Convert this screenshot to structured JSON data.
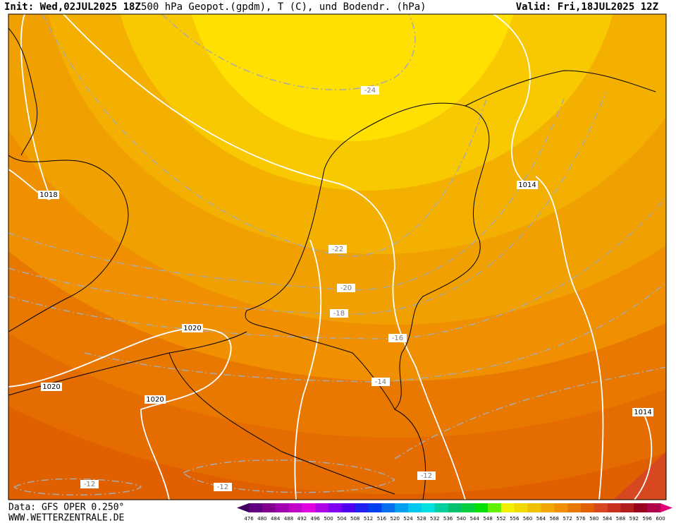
{
  "header": {
    "init": "Init: Wed,02JUL2025 18Z",
    "title": "500 hPa Geopot.(gpdm), T (C), und Bodendr. (hPa)",
    "valid": "Valid: Fri,18JUL2025 12Z"
  },
  "footer": {
    "data": "Data: GFS OPER 0.250°",
    "site": "WWW.WETTERZENTRALE.DE"
  },
  "isobar_labels": [
    "1018",
    "1014",
    "1020",
    "1020",
    "1020",
    "1014"
  ],
  "temperature_labels": [
    "-24",
    "-22",
    "-20",
    "-18",
    "-16",
    "-14",
    "-12",
    "-12",
    "-12"
  ],
  "legend": {
    "ticks": [
      476,
      480,
      484,
      488,
      492,
      496,
      500,
      504,
      508,
      512,
      516,
      520,
      524,
      528,
      532,
      536,
      540,
      544,
      548,
      552,
      556,
      560,
      564,
      568,
      572,
      576,
      580,
      584,
      588,
      592,
      596,
      600
    ],
    "colors": [
      "#600080",
      "#800090",
      "#a000b0",
      "#c000c8",
      "#e000e0",
      "#b000e8",
      "#8000f0",
      "#5000f0",
      "#2020f0",
      "#0040f0",
      "#0070f0",
      "#00a0f0",
      "#00c8f0",
      "#00e0e0",
      "#00d0a0",
      "#00c070",
      "#00d040",
      "#00e000",
      "#60f000",
      "#f0f000",
      "#f0d800",
      "#f0c000",
      "#f0a800",
      "#f09000",
      "#e87800",
      "#e06000",
      "#d84820",
      "#c83020",
      "#b02020",
      "#980020",
      "#b0004a"
    ],
    "under_color": "#400060",
    "over_color": "#e0007a"
  }
}
